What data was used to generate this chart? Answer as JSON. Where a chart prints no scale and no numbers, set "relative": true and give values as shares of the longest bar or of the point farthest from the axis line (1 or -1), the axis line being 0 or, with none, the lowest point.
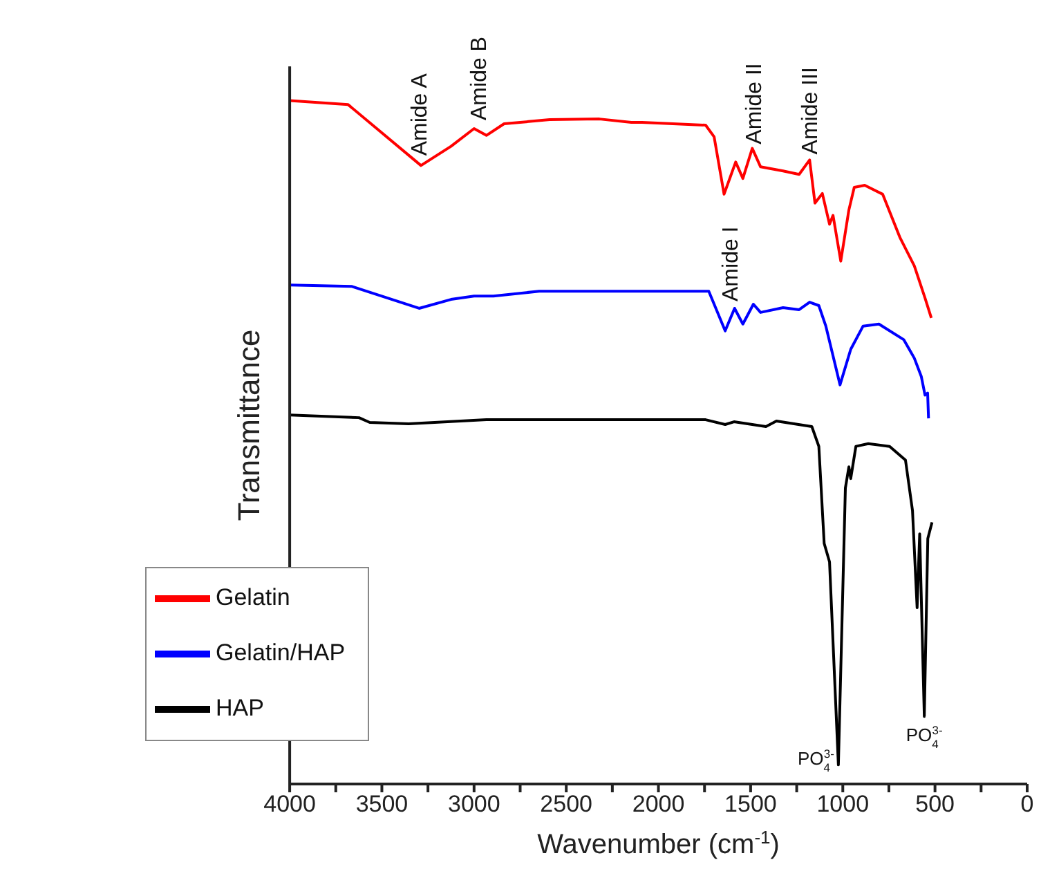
{
  "chart_data": {
    "type": "line",
    "relative": true,
    "xlabel": "Wavenumber (cm$^{-1}$)",
    "ylabel": "Transmittance",
    "xlim": [
      4000,
      0
    ],
    "xticks": [
      4000,
      {
        "value": 3750,
        "label": null
      },
      3500,
      {
        "value": 3250,
        "label": null
      },
      3000,
      {
        "value": 2750,
        "label": null
      },
      2500,
      {
        "value": 2250,
        "label": null
      },
      2000,
      {
        "value": 1750,
        "label": null
      },
      1500,
      {
        "value": 1250,
        "label": null
      },
      1000,
      {
        "value": 750,
        "label": null
      },
      500,
      {
        "value": 250,
        "label": null
      },
      0
    ],
    "legend": "bottom left",
    "series": [
      {
        "name": "HAP",
        "color": "#000000",
        "x": [
          4000,
          3624,
          3566,
          3355,
          2933,
          1974,
          1744,
          1638,
          1590,
          1417,
          1360,
          1168,
          1130,
          1101,
          1072,
          1024,
          986,
          967,
          957,
          929,
          862,
          746,
          660,
          622,
          597,
          583,
          558,
          539,
          516
        ],
        "values": [
          0.54,
          0.536,
          0.529,
          0.527,
          0.533,
          0.533,
          0.533,
          0.526,
          0.53,
          0.523,
          0.531,
          0.523,
          0.494,
          0.352,
          0.325,
          0.028,
          0.433,
          0.464,
          0.447,
          0.494,
          0.498,
          0.494,
          0.474,
          0.4,
          0.258,
          0.366,
          0.099,
          0.359,
          0.383
        ]
      },
      {
        "name": "Gelatin",
        "color": "#ff0000",
        "x": [
          4000,
          3683,
          3288,
          3125,
          3000,
          2933,
          2837,
          2590,
          2320,
          2147,
          2089,
          1744,
          1698,
          1644,
          1581,
          1542,
          1491,
          1446,
          1324,
          1237,
          1180,
          1151,
          1111,
          1072,
          1053,
          1011,
          967,
          938,
          881,
          784,
          689,
          612,
          554,
          520
        ],
        "values": [
          1.0,
          0.994,
          0.905,
          0.933,
          0.959,
          0.949,
          0.966,
          0.972,
          0.973,
          0.968,
          0.968,
          0.964,
          0.947,
          0.863,
          0.91,
          0.886,
          0.93,
          0.903,
          0.897,
          0.892,
          0.913,
          0.85,
          0.864,
          0.819,
          0.832,
          0.765,
          0.84,
          0.873,
          0.876,
          0.863,
          0.799,
          0.758,
          0.711,
          0.682
        ]
      },
      {
        "name": "Gelatin/HAP",
        "color": "#0000ff",
        "x": [
          4000,
          3662,
          3298,
          3125,
          3000,
          2895,
          2647,
          2129,
          1727,
          1638,
          1587,
          1542,
          1485,
          1446,
          1324,
          1237,
          1180,
          1130,
          1092,
          1015,
          957,
          890,
          804,
          669,
          612,
          574,
          554,
          540,
          535
        ],
        "values": [
          0.73,
          0.728,
          0.696,
          0.709,
          0.714,
          0.714,
          0.721,
          0.721,
          0.721,
          0.663,
          0.696,
          0.673,
          0.702,
          0.69,
          0.697,
          0.694,
          0.705,
          0.7,
          0.67,
          0.584,
          0.636,
          0.67,
          0.673,
          0.65,
          0.623,
          0.596,
          0.569,
          0.572,
          0.535
        ]
      }
    ],
    "annotations": [
      {
        "text": "Amide A",
        "x": 3288,
        "y": 0.905
      },
      {
        "text": "Amide B",
        "x": 2964,
        "y": 0.959
      },
      {
        "text": "Amide II",
        "x": 1474,
        "y": 0.93
      },
      {
        "text": "Amide III",
        "x": 1168,
        "y": 0.913
      },
      {
        "text": "Amide I",
        "x": 1600,
        "y": 0.696
      },
      {
        "text": "PO$_{4}$$^{3-}$",
        "x": 1024,
        "y": 0.028
      },
      {
        "text": "PO$_{4}$$^{3-}$",
        "x": 558,
        "y": 0.099
      }
    ]
  }
}
